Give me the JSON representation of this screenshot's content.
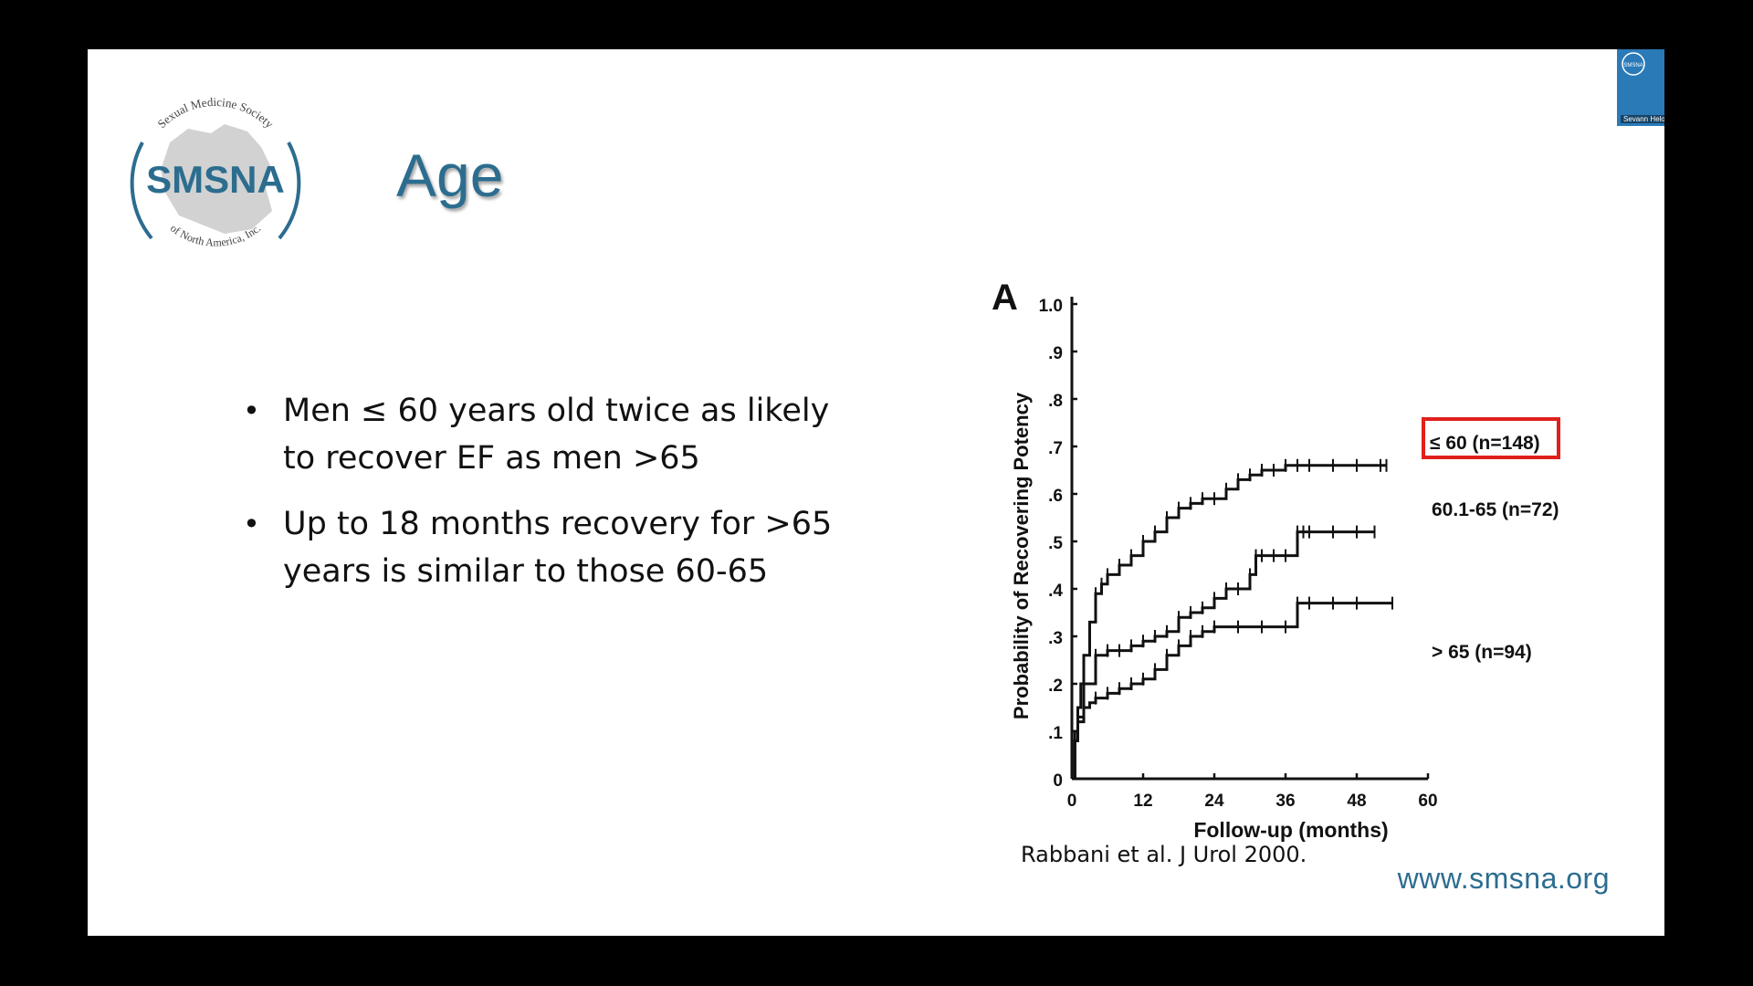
{
  "slide": {
    "title": "Age",
    "logo": {
      "ring_top_text": "Sexual Medicine Society",
      "wordmark": "SMSNA",
      "ring_bottom_text": "of North America, Inc."
    },
    "bullets": [
      "Men ≤ 60 years old twice as likely to recover EF as men >65",
      "Up to 18 months recovery for >65 years is similar to those 60-65"
    ],
    "citation": "Rabbani et al. J Urol 2000.",
    "website": "www.smsna.org"
  },
  "video": {
    "participant_name": "Sevann Helo, MD",
    "badge": "SMSNA"
  },
  "chart_data": {
    "type": "line",
    "panel_label": "A",
    "xlabel": "Follow-up (months)",
    "ylabel": "Probability of Recovering Potency",
    "xlim": [
      0,
      60
    ],
    "ylim": [
      0,
      1.0
    ],
    "x_ticks": [
      0,
      12,
      24,
      36,
      48,
      60
    ],
    "x_tick_labels": [
      "0",
      "12",
      "24",
      "36",
      "48",
      "60"
    ],
    "y_ticks": [
      0,
      0.1,
      0.2,
      0.3,
      0.4,
      0.5,
      0.6,
      0.7,
      0.8,
      0.9,
      1.0
    ],
    "y_tick_labels": [
      "0",
      ".1",
      ".2",
      ".3",
      ".4",
      ".5",
      ".6",
      ".7",
      ".8",
      ".9",
      "1.0"
    ],
    "highlight_series": "≤ 60 (n=148)",
    "highlight_color": "#e0201c",
    "series": [
      {
        "name": "≤ 60 (n=148)",
        "x": [
          0,
          0.5,
          1,
          1.5,
          2,
          3,
          4,
          5,
          6,
          8,
          10,
          12,
          14,
          16,
          18,
          20,
          22,
          24,
          26,
          28,
          30,
          32,
          34,
          36,
          38,
          40,
          44,
          48,
          52,
          53
        ],
        "y": [
          0,
          0.08,
          0.15,
          0.2,
          0.26,
          0.33,
          0.39,
          0.41,
          0.43,
          0.45,
          0.47,
          0.5,
          0.52,
          0.55,
          0.57,
          0.58,
          0.59,
          0.59,
          0.61,
          0.63,
          0.64,
          0.65,
          0.65,
          0.66,
          0.66,
          0.66,
          0.66,
          0.66,
          0.66,
          0.66
        ]
      },
      {
        "name": "60.1-65 (n=72)",
        "x": [
          0,
          0.5,
          1,
          2,
          4,
          6,
          8,
          10,
          12,
          14,
          16,
          18,
          20,
          22,
          24,
          26,
          28,
          30,
          31,
          32,
          34,
          36,
          38,
          39,
          40,
          44,
          48,
          51
        ],
        "y": [
          0,
          0.08,
          0.12,
          0.2,
          0.26,
          0.27,
          0.27,
          0.28,
          0.29,
          0.3,
          0.31,
          0.34,
          0.35,
          0.36,
          0.38,
          0.4,
          0.4,
          0.43,
          0.47,
          0.47,
          0.47,
          0.47,
          0.52,
          0.52,
          0.52,
          0.52,
          0.52,
          0.52
        ]
      },
      {
        "name": "> 65 (n=94)",
        "x": [
          0,
          0.5,
          1,
          2,
          3,
          4,
          6,
          8,
          10,
          12,
          14,
          16,
          18,
          20,
          22,
          24,
          28,
          32,
          36,
          38,
          40,
          44,
          48,
          54
        ],
        "y": [
          0,
          0.1,
          0.13,
          0.15,
          0.16,
          0.17,
          0.18,
          0.19,
          0.2,
          0.21,
          0.23,
          0.26,
          0.28,
          0.3,
          0.31,
          0.32,
          0.32,
          0.32,
          0.32,
          0.37,
          0.37,
          0.37,
          0.37,
          0.37
        ]
      }
    ]
  }
}
